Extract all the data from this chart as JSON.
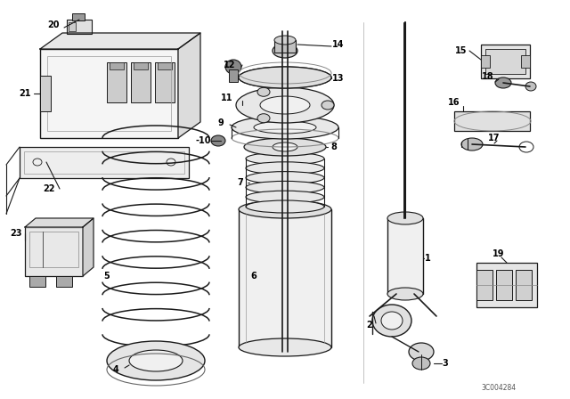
{
  "background_color": "#ffffff",
  "line_color": "#1a1a1a",
  "watermark": "3C004284",
  "figsize": [
    6.4,
    4.48
  ],
  "dpi": 100
}
